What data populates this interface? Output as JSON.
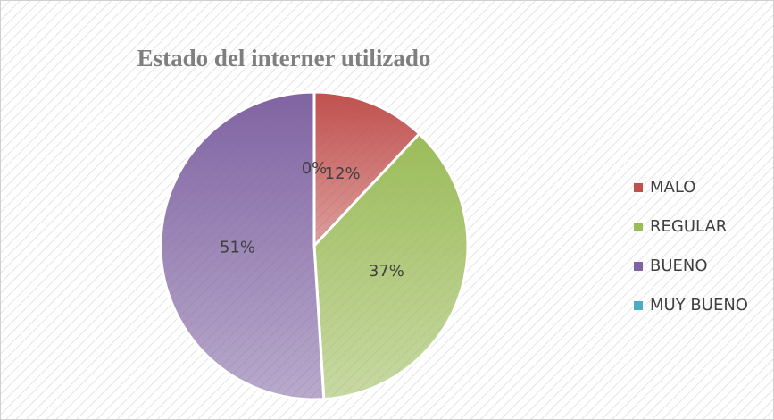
{
  "chart_data": {
    "type": "pie",
    "title": "Estado del interner utilizado",
    "categories": [
      "MALO",
      "REGULAR",
      "BUENO",
      "MUY BUENO"
    ],
    "values": [
      12,
      37,
      51,
      0
    ],
    "value_labels": [
      "12%",
      "37%",
      "51%",
      "0%"
    ],
    "colors": [
      "#c0504d",
      "#9bbb59",
      "#8064a2",
      "#4bacc6"
    ],
    "legend": "right"
  }
}
